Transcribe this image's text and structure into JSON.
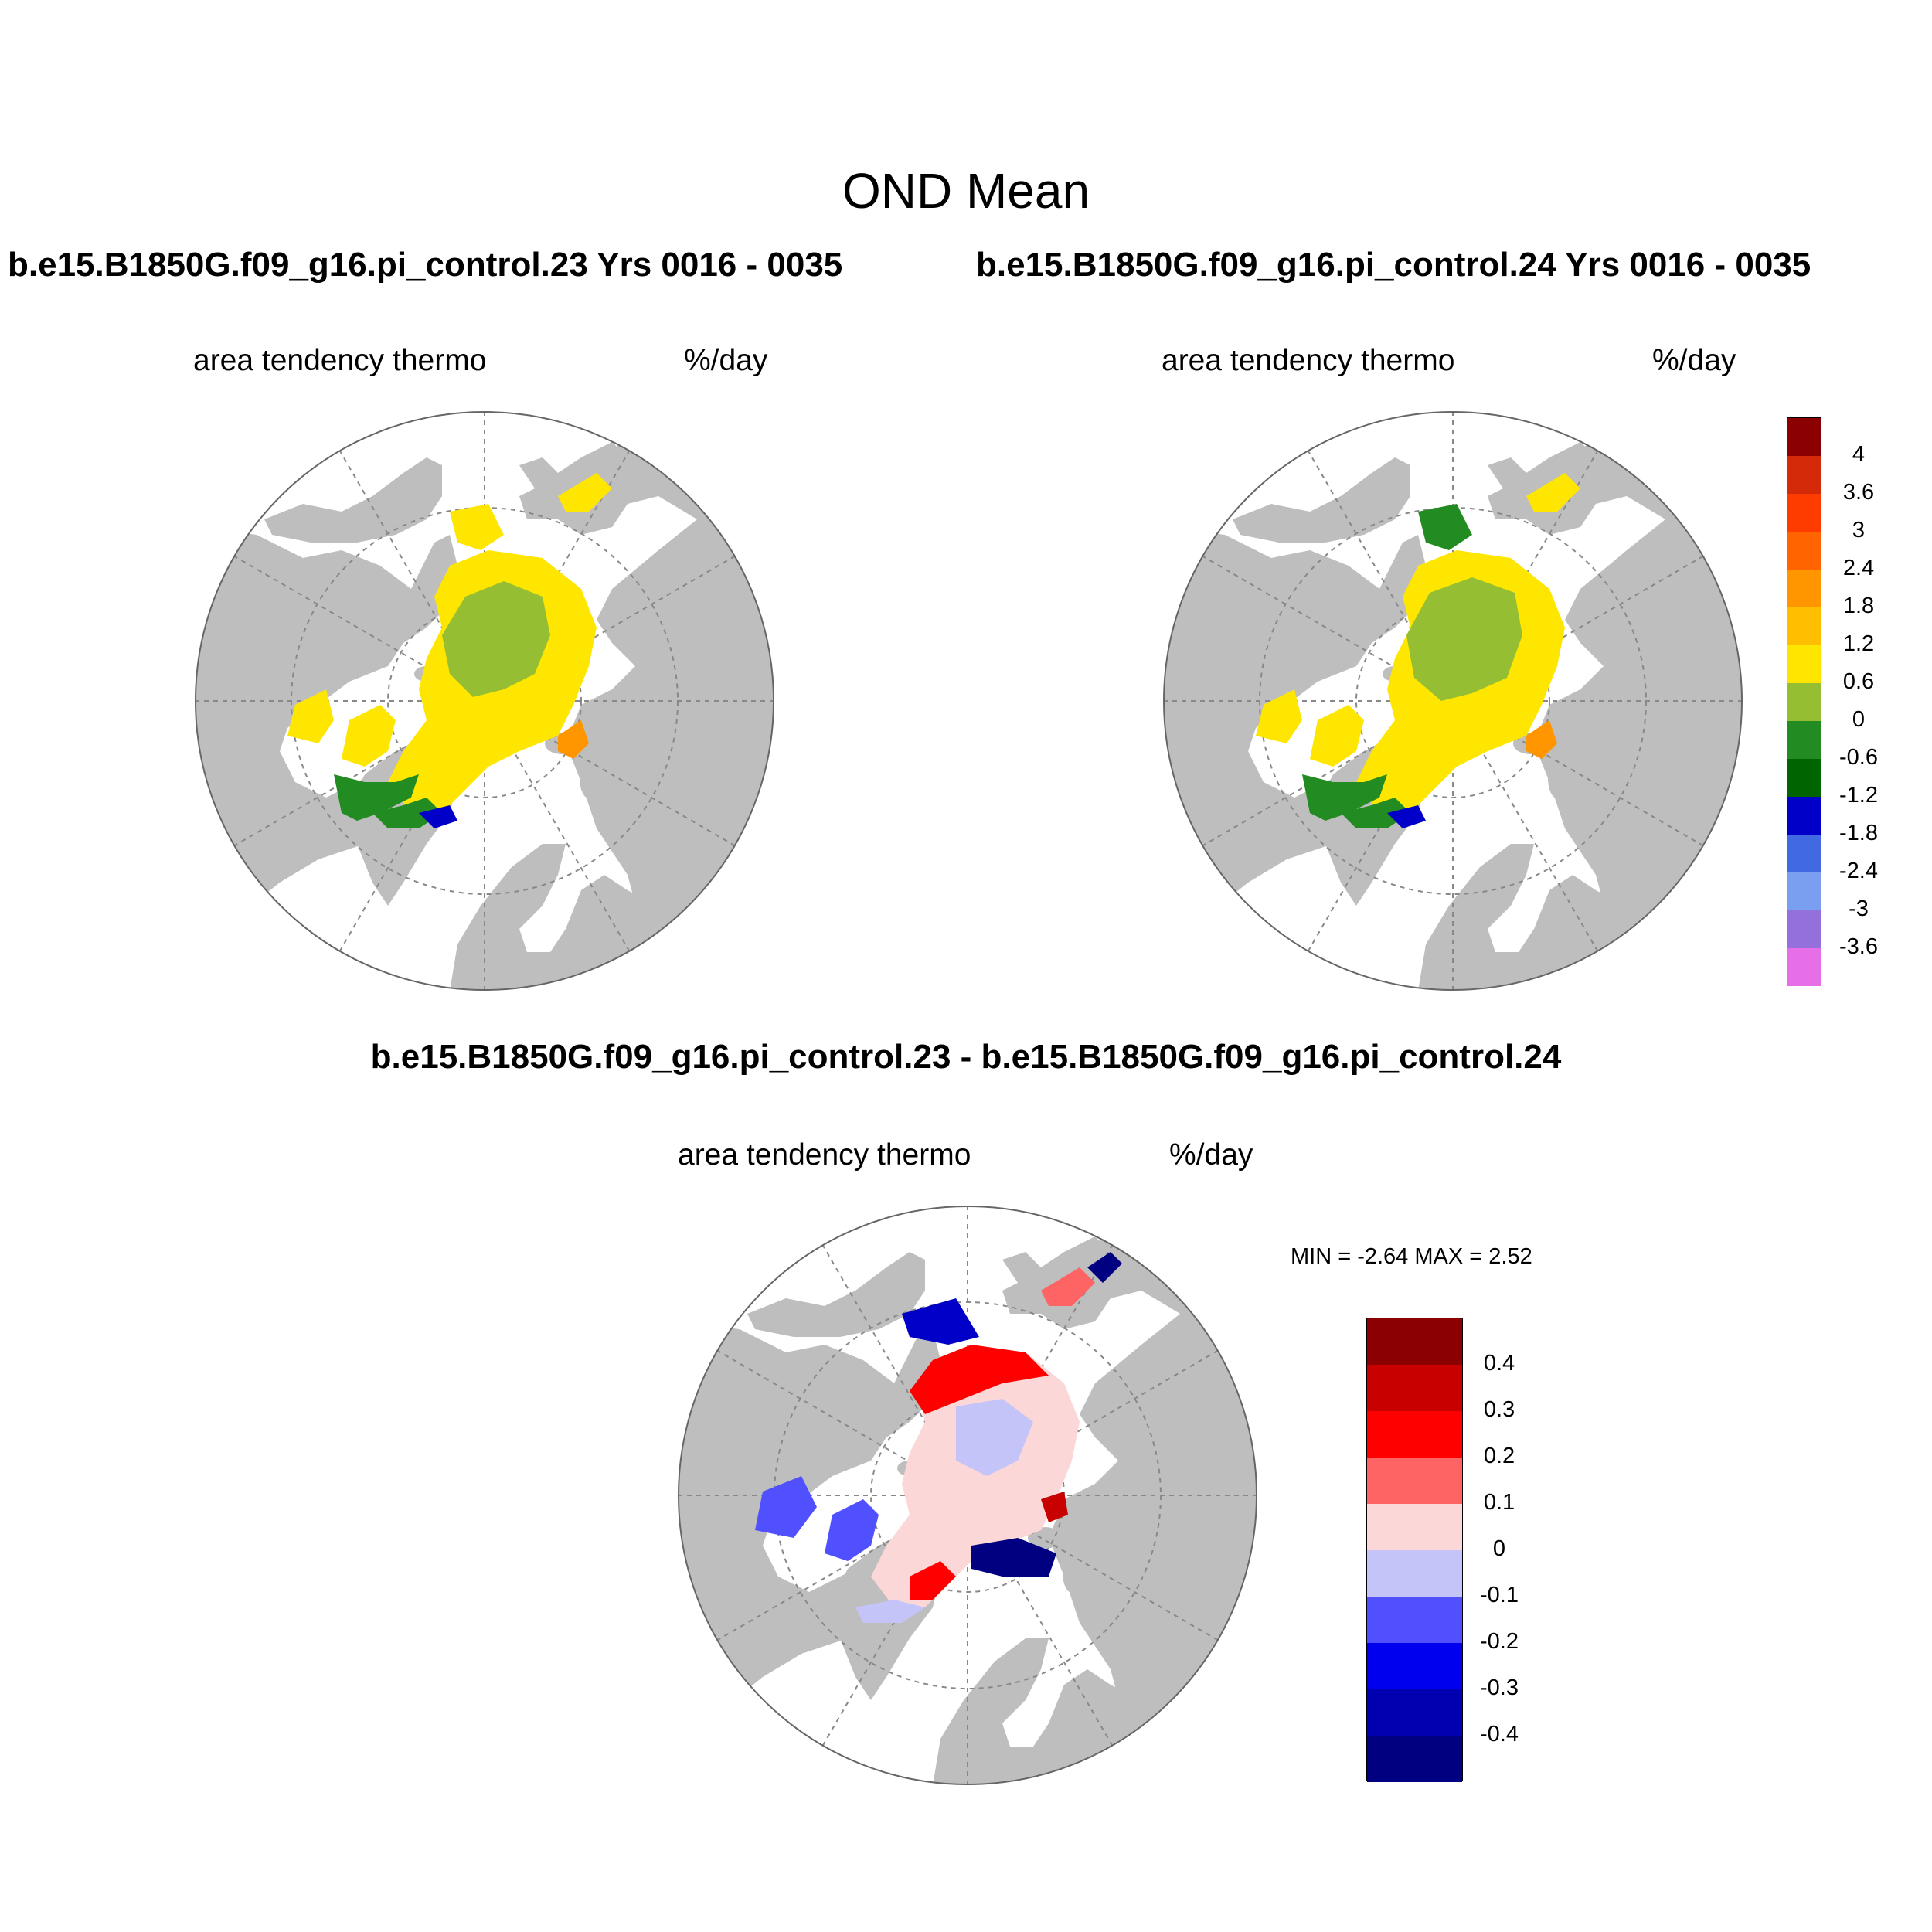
{
  "figure": {
    "title": "OND Mean",
    "panels": [
      {
        "run_title": "b.e15.B1850G.f09_g16.pi_control.23  Yrs 0016 - 0035",
        "field_label": "area tendency thermo",
        "units": "%/day"
      },
      {
        "run_title": "b.e15.B1850G.f09_g16.pi_control.24  Yrs 0016 - 0035",
        "field_label": "area tendency thermo",
        "units": "%/day"
      },
      {
        "run_title": "b.e15.B1850G.f09_g16.pi_control.23 - b.e15.B1850G.f09_g16.pi_control.24",
        "field_label": "area tendency thermo",
        "units": "%/day",
        "min_label": "MIN =  -2.64 MAX =   2.52"
      }
    ],
    "colorbar_top": {
      "labels": [
        "4",
        "3.6",
        "3",
        "2.4",
        "1.8",
        "1.2",
        "0.6",
        "0",
        "-0.6",
        "-1.2",
        "-1.8",
        "-2.4",
        "-3",
        "-3.6"
      ],
      "colors": [
        "#8b0000",
        "#d42a0a",
        "#ff3c00",
        "#ff6400",
        "#ff9600",
        "#ffbe00",
        "#ffe600",
        "#96be32",
        "#228b22",
        "#006400",
        "#0000c8",
        "#4169e1",
        "#7b9ff0",
        "#9370db",
        "#e66ee6"
      ]
    },
    "colorbar_diff": {
      "labels": [
        "0.4",
        "0.3",
        "0.2",
        "0.1",
        "0",
        "-0.1",
        "-0.2",
        "-0.3",
        "-0.4"
      ],
      "colors": [
        "#8b0000",
        "#c80000",
        "#ff0000",
        "#ff6464",
        "#fbd7d7",
        "#c4c4f8",
        "#5050ff",
        "#0000ee",
        "#0000b0",
        "#000080"
      ]
    },
    "map_colors": {
      "land": "#bebebe",
      "ocean": "#ffffff",
      "ice_interior": "#96be32",
      "ice_edge": "#ffe600"
    }
  }
}
